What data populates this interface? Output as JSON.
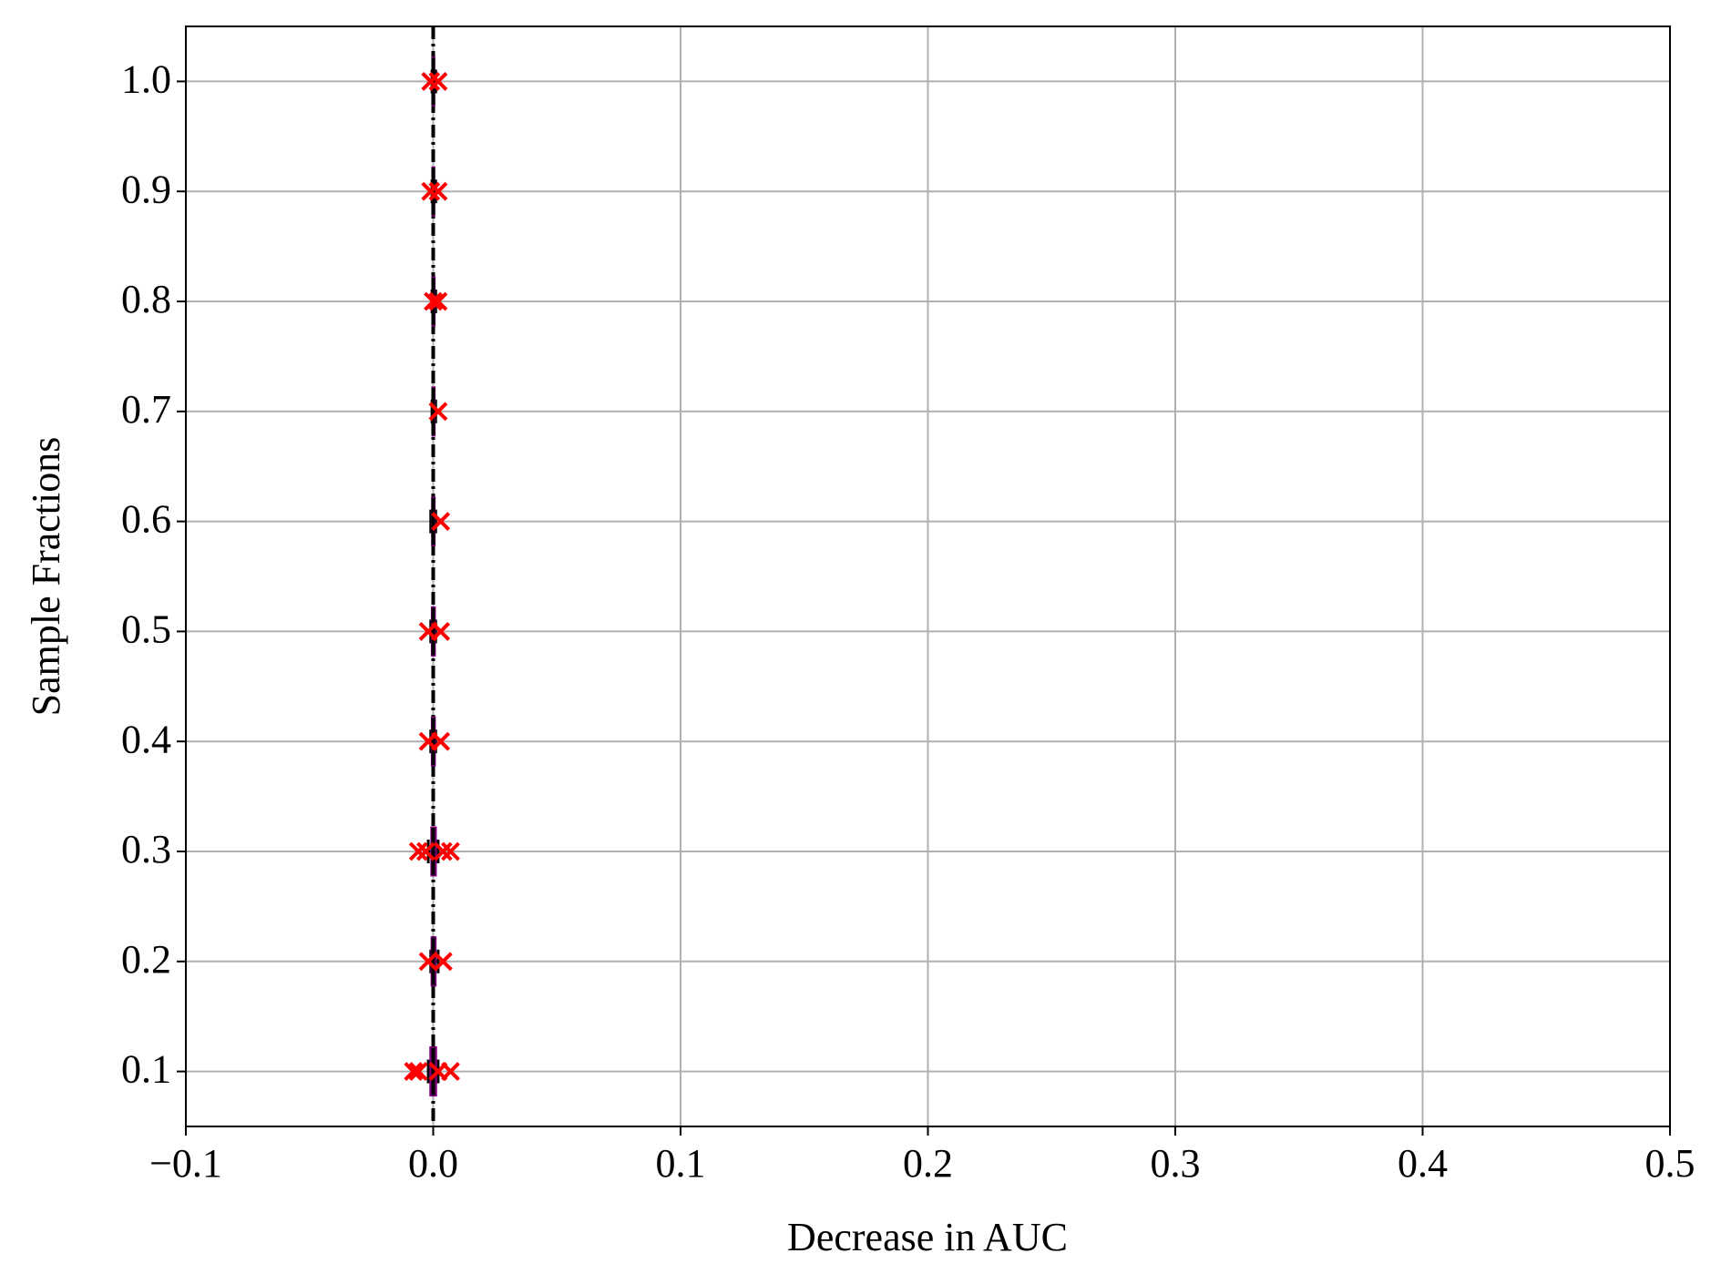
{
  "chart_data": {
    "type": "box",
    "x_label": "Decrease in AUC",
    "y_label": "Sample Fractions",
    "xlim": [
      -0.1,
      0.5
    ],
    "xticks": [
      {
        "value": -0.1,
        "label": "−0.1"
      },
      {
        "value": 0,
        "label": "0.0"
      },
      0.1,
      0.2,
      0.3,
      0.4,
      0.5
    ],
    "ylim": [
      0.05,
      1.05
    ],
    "yticks": [
      0.1,
      0.2,
      0.3,
      0.4,
      0.5,
      0.6,
      0.7,
      0.8,
      0.9,
      {
        "value": 1,
        "label": "1.0"
      }
    ],
    "grid": true,
    "reference_line": 0,
    "box_color": "#800080",
    "outlier_color": "#ff0000",
    "positions": [
      0.1,
      0.2,
      0.3,
      0.4,
      0.5,
      0.6,
      0.7,
      0.8,
      0.9,
      1.0
    ],
    "boxes": [
      [
        -0.002,
        -0.001,
        0.0,
        0.001,
        0.002
      ],
      [
        -0.001,
        -0.0005,
        0.0,
        0.0008,
        0.002
      ],
      [
        -0.002,
        -0.0006,
        0.0,
        0.0009,
        0.002
      ],
      [
        -0.001,
        -0.0004,
        0.0,
        0.0005,
        0.001
      ],
      [
        -0.001,
        -0.0004,
        0.0,
        0.0005,
        0.001
      ],
      [
        -0.001,
        -0.0003,
        0.0,
        0.0004,
        0.001
      ],
      [
        -0.0005,
        -0.0002,
        0.0,
        0.0004,
        0.001
      ],
      [
        -0.0005,
        -0.0002,
        0.0,
        0.0004,
        0.001
      ],
      [
        -0.0005,
        -0.0002,
        0.0,
        0.0003,
        0.001
      ],
      [
        -0.0005,
        -0.0002,
        0.0,
        0.0003,
        0.001
      ]
    ],
    "outliers": [
      [
        -0.008,
        -0.006,
        0.002,
        0.007
      ],
      [
        -0.002,
        0.004
      ],
      [
        -0.006,
        -0.003,
        0.004,
        0.007
      ],
      [
        -0.002,
        0.003
      ],
      [
        -0.002,
        0.003
      ],
      [
        0.003
      ],
      [
        0.002
      ],
      [
        0.0,
        0.002
      ],
      [
        -0.001,
        0.002
      ],
      [
        -0.001,
        0.002
      ]
    ]
  }
}
